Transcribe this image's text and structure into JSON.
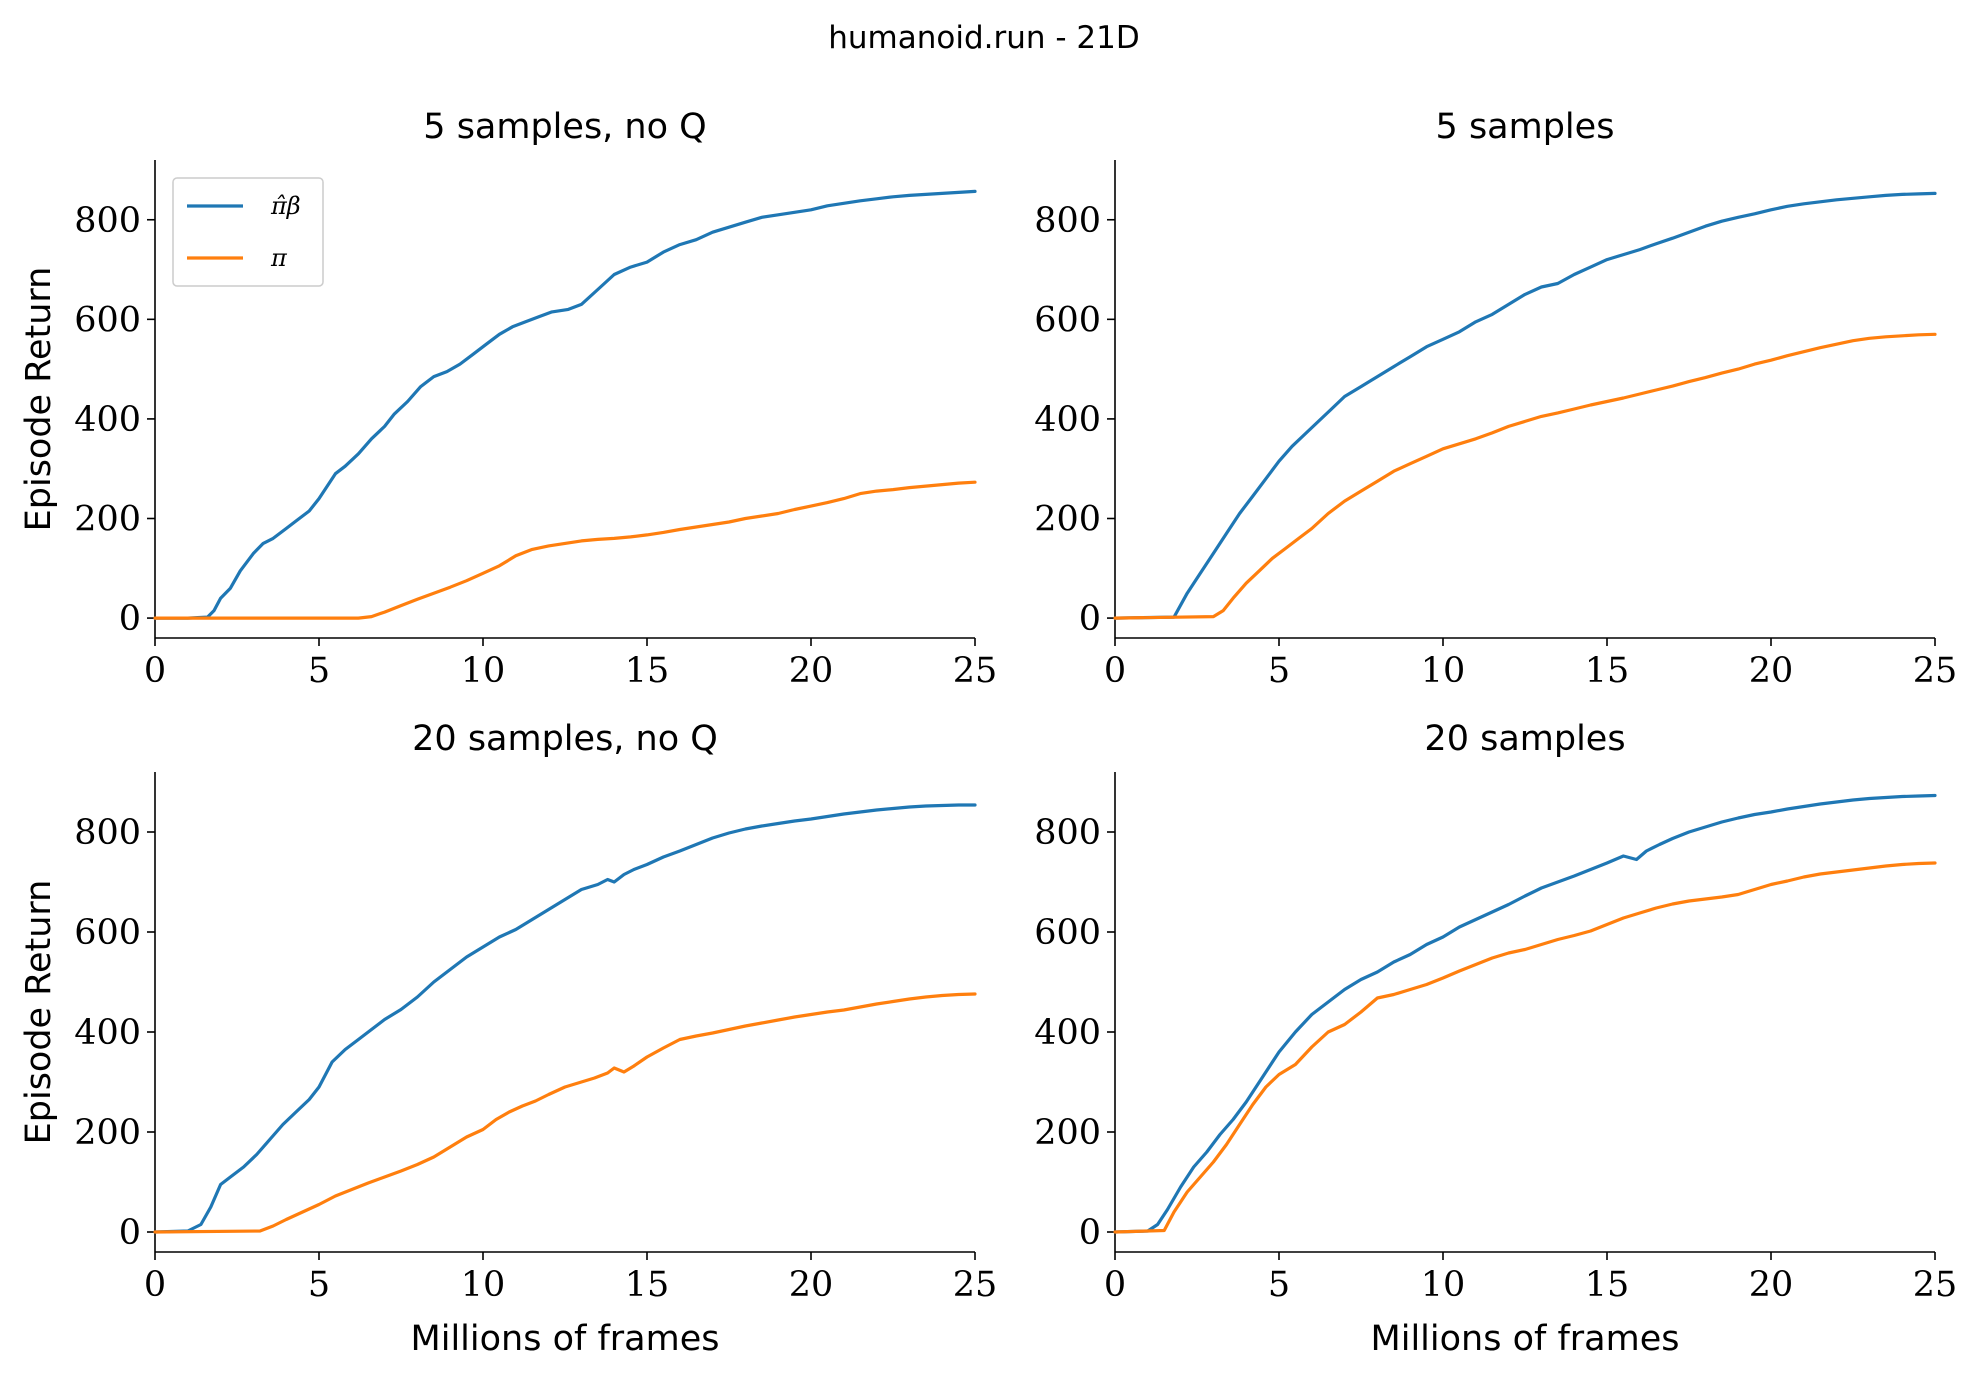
{
  "figure": {
    "title": "humanoid.run - 21D"
  },
  "colors": {
    "pi_beta": "#1f77b4",
    "pi": "#ff7f0e"
  },
  "legend": {
    "location": "upper-left",
    "entries": [
      {
        "series_key": "pi_beta",
        "label": "π̂β"
      },
      {
        "series_key": "pi",
        "label": "π"
      }
    ]
  },
  "chart_data": [
    {
      "type": "line",
      "title": "5 samples, no Q",
      "xlabel": "",
      "ylabel": "Episode Return",
      "xlim": [
        0,
        25
      ],
      "ylim": [
        -40,
        920
      ],
      "xticks": [
        0,
        5,
        10,
        15,
        20,
        25
      ],
      "yticks": [
        0,
        200,
        400,
        600,
        800
      ],
      "show_legend": true,
      "series": [
        {
          "key": "pi_beta",
          "name": "π̂β",
          "x": [
            0,
            1,
            1.6,
            1.8,
            2.0,
            2.3,
            2.6,
            3.0,
            3.3,
            3.6,
            4.0,
            4.3,
            4.7,
            5.0,
            5.5,
            5.8,
            6.2,
            6.6,
            7.0,
            7.3,
            7.7,
            8.1,
            8.5,
            8.9,
            9.3,
            9.7,
            10.1,
            10.5,
            10.9,
            11.3,
            11.7,
            12.1,
            12.6,
            13.0,
            13.5,
            14.0,
            14.5,
            15.0,
            15.5,
            16.0,
            16.5,
            17.0,
            17.5,
            18.0,
            18.5,
            19.0,
            19.5,
            20.0,
            20.5,
            21.0,
            21.5,
            22.0,
            22.5,
            23.0,
            23.5,
            24.0,
            24.5,
            25.0
          ],
          "y": [
            0,
            0,
            2,
            15,
            40,
            60,
            95,
            130,
            150,
            160,
            180,
            195,
            215,
            240,
            290,
            305,
            330,
            360,
            385,
            410,
            435,
            465,
            485,
            495,
            510,
            530,
            550,
            570,
            585,
            595,
            605,
            615,
            620,
            630,
            660,
            690,
            705,
            715,
            735,
            750,
            760,
            775,
            785,
            795,
            805,
            810,
            815,
            820,
            828,
            833,
            838,
            842,
            846,
            849,
            851,
            853,
            855,
            857
          ]
        },
        {
          "key": "pi",
          "name": "π",
          "x": [
            0,
            6.2,
            6.6,
            7.0,
            7.5,
            8.0,
            8.5,
            9.0,
            9.5,
            10.0,
            10.5,
            11.0,
            11.5,
            12.0,
            12.5,
            13.0,
            13.5,
            14.0,
            14.5,
            15.0,
            15.5,
            16.0,
            16.5,
            17.0,
            17.5,
            18.0,
            18.5,
            19.0,
            19.5,
            20.0,
            20.5,
            21.0,
            21.5,
            22.0,
            22.5,
            23.0,
            23.5,
            24.0,
            24.5,
            25.0
          ],
          "y": [
            0,
            0,
            3,
            12,
            25,
            38,
            50,
            62,
            75,
            90,
            105,
            125,
            138,
            145,
            150,
            155,
            158,
            160,
            163,
            167,
            172,
            178,
            183,
            188,
            193,
            200,
            205,
            210,
            218,
            225,
            232,
            240,
            250,
            255,
            258,
            262,
            265,
            268,
            271,
            273
          ]
        }
      ]
    },
    {
      "type": "line",
      "title": "5 samples",
      "xlabel": "",
      "ylabel": "",
      "xlim": [
        0,
        25
      ],
      "ylim": [
        -40,
        920
      ],
      "xticks": [
        0,
        5,
        10,
        15,
        20,
        25
      ],
      "yticks": [
        0,
        200,
        400,
        600,
        800
      ],
      "show_legend": false,
      "series": [
        {
          "key": "pi_beta",
          "name": "π̂β",
          "x": [
            0,
            1.8,
            2.2,
            2.6,
            3.0,
            3.4,
            3.8,
            4.2,
            4.6,
            5.0,
            5.4,
            5.8,
            6.2,
            6.6,
            7.0,
            7.5,
            8.0,
            8.5,
            9.0,
            9.5,
            10.0,
            10.5,
            11.0,
            11.5,
            12.0,
            12.5,
            13.0,
            13.5,
            14.0,
            14.5,
            15.0,
            15.5,
            16.0,
            16.5,
            17.0,
            17.5,
            18.0,
            18.5,
            19.0,
            19.5,
            20.0,
            20.5,
            21.0,
            21.5,
            22.0,
            22.5,
            23.0,
            23.5,
            24.0,
            24.5,
            25.0
          ],
          "y": [
            0,
            2,
            50,
            90,
            130,
            170,
            210,
            245,
            280,
            315,
            345,
            370,
            395,
            420,
            445,
            465,
            485,
            505,
            525,
            545,
            560,
            575,
            595,
            610,
            630,
            650,
            665,
            672,
            690,
            705,
            720,
            730,
            740,
            752,
            763,
            775,
            787,
            797,
            805,
            812,
            820,
            827,
            832,
            836,
            840,
            843,
            846,
            849,
            851,
            852,
            853
          ]
        },
        {
          "key": "pi",
          "name": "π",
          "x": [
            0,
            3.0,
            3.3,
            3.6,
            4.0,
            4.4,
            4.8,
            5.2,
            5.6,
            6.0,
            6.5,
            7.0,
            7.5,
            8.0,
            8.5,
            9.0,
            9.5,
            10.0,
            10.5,
            11.0,
            11.5,
            12.0,
            12.5,
            13.0,
            13.5,
            14.0,
            14.5,
            15.0,
            15.5,
            16.0,
            16.5,
            17.0,
            17.5,
            18.0,
            18.5,
            19.0,
            19.5,
            20.0,
            20.5,
            21.0,
            21.5,
            22.0,
            22.5,
            23.0,
            23.5,
            24.0,
            24.5,
            25.0
          ],
          "y": [
            0,
            3,
            15,
            40,
            70,
            95,
            120,
            140,
            160,
            180,
            210,
            235,
            255,
            275,
            295,
            310,
            325,
            340,
            350,
            360,
            372,
            385,
            395,
            405,
            412,
            420,
            428,
            435,
            442,
            450,
            458,
            466,
            475,
            483,
            492,
            500,
            510,
            518,
            527,
            535,
            543,
            550,
            557,
            562,
            565,
            567,
            569,
            570
          ]
        }
      ]
    },
    {
      "type": "line",
      "title": "20 samples, no Q",
      "xlabel": "Millions of frames",
      "ylabel": "Episode Return",
      "xlim": [
        0,
        25
      ],
      "ylim": [
        -40,
        920
      ],
      "xticks": [
        0,
        5,
        10,
        15,
        20,
        25
      ],
      "yticks": [
        0,
        200,
        400,
        600,
        800
      ],
      "show_legend": false,
      "series": [
        {
          "key": "pi_beta",
          "name": "π̂β",
          "x": [
            0,
            1.0,
            1.4,
            1.7,
            2.0,
            2.3,
            2.7,
            3.1,
            3.5,
            3.9,
            4.3,
            4.7,
            5.0,
            5.4,
            5.8,
            6.2,
            6.6,
            7.0,
            7.5,
            8.0,
            8.5,
            9.0,
            9.5,
            10.0,
            10.5,
            11.0,
            11.5,
            12.0,
            12.5,
            13.0,
            13.5,
            13.8,
            14.0,
            14.3,
            14.6,
            15.0,
            15.5,
            16.0,
            16.5,
            17.0,
            17.5,
            18.0,
            18.5,
            19.0,
            19.5,
            20.0,
            20.5,
            21.0,
            21.5,
            22.0,
            22.5,
            23.0,
            23.5,
            24.0,
            24.5,
            25.0
          ],
          "y": [
            0,
            2,
            15,
            50,
            95,
            110,
            130,
            155,
            185,
            215,
            240,
            265,
            290,
            340,
            365,
            385,
            405,
            425,
            445,
            470,
            500,
            525,
            550,
            570,
            590,
            605,
            625,
            645,
            665,
            685,
            695,
            705,
            700,
            715,
            725,
            735,
            750,
            762,
            775,
            788,
            798,
            806,
            812,
            817,
            822,
            826,
            831,
            836,
            840,
            844,
            847,
            850,
            852,
            853,
            854,
            854
          ]
        },
        {
          "key": "pi",
          "name": "π",
          "x": [
            0,
            3.2,
            3.6,
            4.0,
            4.5,
            5.0,
            5.5,
            6.0,
            6.5,
            7.0,
            7.5,
            8.0,
            8.5,
            9.0,
            9.5,
            10.0,
            10.4,
            10.8,
            11.2,
            11.6,
            12.0,
            12.5,
            13.0,
            13.4,
            13.8,
            14.0,
            14.3,
            14.6,
            15.0,
            15.5,
            16.0,
            16.5,
            17.0,
            17.5,
            18.0,
            18.5,
            19.0,
            19.5,
            20.0,
            20.5,
            21.0,
            21.5,
            22.0,
            22.5,
            23.0,
            23.5,
            24.0,
            24.5,
            25.0
          ],
          "y": [
            0,
            2,
            12,
            25,
            40,
            55,
            72,
            85,
            98,
            110,
            122,
            135,
            150,
            170,
            190,
            205,
            225,
            240,
            252,
            262,
            275,
            290,
            300,
            308,
            318,
            328,
            320,
            332,
            350,
            368,
            385,
            392,
            398,
            405,
            412,
            418,
            424,
            430,
            435,
            440,
            444,
            450,
            456,
            461,
            466,
            470,
            473,
            475,
            476
          ]
        }
      ]
    },
    {
      "type": "line",
      "title": "20 samples",
      "xlabel": "Millions of frames",
      "ylabel": "",
      "xlim": [
        0,
        25
      ],
      "ylim": [
        -40,
        920
      ],
      "xticks": [
        0,
        5,
        10,
        15,
        20,
        25
      ],
      "yticks": [
        0,
        200,
        400,
        600,
        800
      ],
      "show_legend": false,
      "series": [
        {
          "key": "pi_beta",
          "name": "π̂β",
          "x": [
            0,
            1.0,
            1.3,
            1.6,
            2.0,
            2.4,
            2.8,
            3.2,
            3.6,
            4.0,
            4.5,
            5.0,
            5.5,
            6.0,
            6.5,
            7.0,
            7.5,
            8.0,
            8.5,
            9.0,
            9.5,
            10.0,
            10.5,
            11.0,
            11.5,
            12.0,
            12.5,
            13.0,
            13.5,
            14.0,
            14.5,
            15.0,
            15.5,
            15.9,
            16.2,
            16.6,
            17.0,
            17.5,
            18.0,
            18.5,
            19.0,
            19.5,
            20.0,
            20.5,
            21.0,
            21.5,
            22.0,
            22.5,
            23.0,
            23.5,
            24.0,
            24.5,
            25.0
          ],
          "y": [
            0,
            2,
            15,
            45,
            90,
            130,
            160,
            195,
            225,
            260,
            310,
            360,
            400,
            435,
            460,
            485,
            505,
            520,
            540,
            555,
            575,
            590,
            610,
            625,
            640,
            655,
            672,
            688,
            700,
            712,
            725,
            738,
            752,
            745,
            762,
            775,
            787,
            800,
            810,
            820,
            828,
            835,
            840,
            846,
            851,
            856,
            860,
            864,
            867,
            869,
            871,
            872,
            873
          ]
        },
        {
          "key": "pi",
          "name": "π",
          "x": [
            0,
            1.5,
            1.8,
            2.2,
            2.6,
            3.0,
            3.4,
            3.8,
            4.2,
            4.6,
            5.0,
            5.5,
            6.0,
            6.5,
            7.0,
            7.5,
            8.0,
            8.5,
            9.0,
            9.5,
            10.0,
            10.5,
            11.0,
            11.5,
            12.0,
            12.5,
            13.0,
            13.5,
            14.0,
            14.5,
            15.0,
            15.5,
            16.0,
            16.5,
            17.0,
            17.5,
            18.0,
            18.5,
            19.0,
            19.5,
            20.0,
            20.5,
            21.0,
            21.5,
            22.0,
            22.5,
            23.0,
            23.5,
            24.0,
            24.5,
            25.0
          ],
          "y": [
            0,
            3,
            40,
            80,
            110,
            140,
            175,
            215,
            255,
            290,
            315,
            335,
            370,
            400,
            415,
            440,
            468,
            475,
            485,
            495,
            508,
            522,
            535,
            548,
            558,
            565,
            575,
            585,
            593,
            602,
            615,
            628,
            638,
            648,
            656,
            662,
            666,
            670,
            675,
            685,
            695,
            702,
            710,
            716,
            720,
            724,
            728,
            732,
            735,
            737,
            738
          ]
        }
      ]
    }
  ]
}
